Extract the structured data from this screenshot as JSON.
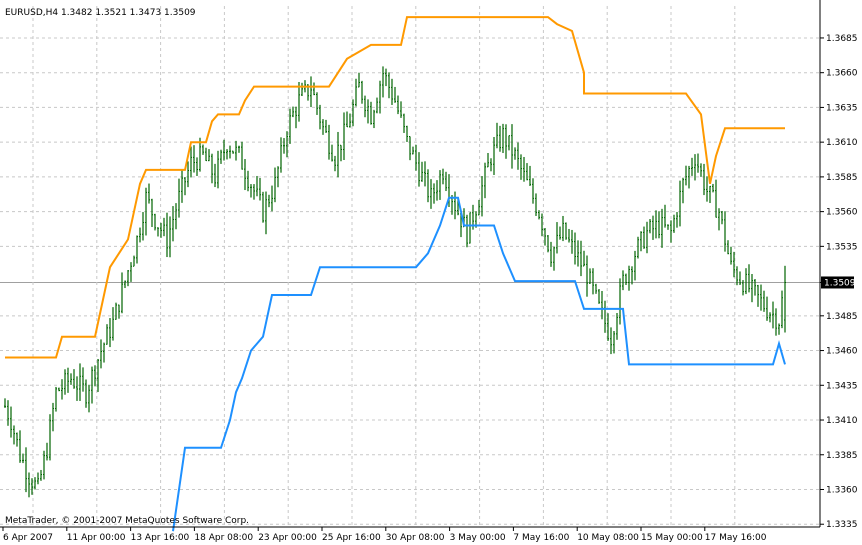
{
  "chart_data": {
    "type": "candlestick",
    "title": "EURUSD,H4  1.3482 1.3521 1.3473 1.3509",
    "symbol": "EURUSD",
    "timeframe": "H4",
    "last_bar": {
      "open": 1.3482,
      "high": 1.3521,
      "low": 1.3473,
      "close": 1.3509
    },
    "current_price_label": "1.3509",
    "watermark": "MetaTrader, © 2001-2007 MetaQuotes Software Corp.",
    "ylim": [
      1.3333,
      1.3708
    ],
    "grid": true,
    "y_ticks": [
      "1.3685",
      "1.3660",
      "1.3635",
      "1.3610",
      "1.3585",
      "1.3560",
      "1.3535",
      "1.3509",
      "1.3485",
      "1.3460",
      "1.3435",
      "1.3410",
      "1.3385",
      "1.3360",
      "1.3335"
    ],
    "x_ticks": [
      "6 Apr 2007",
      "11 Apr 00:00",
      "13 Apr 16:00",
      "18 Apr 08:00",
      "23 Apr 00:00",
      "25 Apr 16:00",
      "30 Apr 08:00",
      "3 May 00:00",
      "7 May 16:00",
      "10 May 08:00",
      "15 May 00:00",
      "17 May 16:00"
    ],
    "candle_color": "#006400",
    "anchors": [
      [
        0,
        1.342
      ],
      [
        2,
        1.341
      ],
      [
        5,
        1.3385
      ],
      [
        8,
        1.337
      ],
      [
        11,
        1.336
      ],
      [
        14,
        1.339
      ],
      [
        17,
        1.343
      ],
      [
        22,
        1.344
      ],
      [
        27,
        1.343
      ],
      [
        32,
        1.346
      ],
      [
        36,
        1.348
      ],
      [
        40,
        1.351
      ],
      [
        44,
        1.354
      ],
      [
        47,
        1.357
      ],
      [
        50,
        1.3555
      ],
      [
        54,
        1.354
      ],
      [
        58,
        1.357
      ],
      [
        62,
        1.3595
      ],
      [
        66,
        1.36
      ],
      [
        70,
        1.3585
      ],
      [
        74,
        1.361
      ],
      [
        78,
        1.36
      ],
      [
        82,
        1.358
      ],
      [
        86,
        1.356
      ],
      [
        90,
        1.358
      ],
      [
        94,
        1.362
      ],
      [
        98,
        1.364
      ],
      [
        102,
        1.365
      ],
      [
        106,
        1.362
      ],
      [
        110,
        1.36
      ],
      [
        114,
        1.362
      ],
      [
        118,
        1.365
      ],
      [
        122,
        1.363
      ],
      [
        126,
        1.366
      ],
      [
        130,
        1.364
      ],
      [
        134,
        1.361
      ],
      [
        138,
        1.359
      ],
      [
        142,
        1.357
      ],
      [
        146,
        1.359
      ],
      [
        150,
        1.3565
      ],
      [
        154,
        1.3545
      ],
      [
        158,
        1.357
      ],
      [
        162,
        1.36
      ],
      [
        166,
        1.3615
      ],
      [
        170,
        1.36
      ],
      [
        174,
        1.358
      ],
      [
        178,
        1.356
      ],
      [
        182,
        1.353
      ],
      [
        186,
        1.3545
      ],
      [
        190,
        1.353
      ],
      [
        194,
        1.3515
      ],
      [
        198,
        1.349
      ],
      [
        202,
        1.347
      ],
      [
        206,
        1.351
      ],
      [
        210,
        1.353
      ],
      [
        214,
        1.3545
      ],
      [
        218,
        1.355
      ],
      [
        222,
        1.3545
      ],
      [
        226,
        1.358
      ],
      [
        230,
        1.36
      ],
      [
        234,
        1.3575
      ],
      [
        238,
        1.356
      ],
      [
        242,
        1.352
      ],
      [
        246,
        1.351
      ],
      [
        250,
        1.35
      ],
      [
        254,
        1.349
      ],
      [
        258,
        1.3482
      ],
      [
        260,
        1.3509
      ]
    ],
    "series": [
      {
        "name": "",
        "color": "#ff9900",
        "points": [
          [
            0,
            1.3455
          ],
          [
            17,
            1.3455
          ],
          [
            19,
            1.347
          ],
          [
            30,
            1.347
          ],
          [
            33,
            1.35
          ],
          [
            35,
            1.352
          ],
          [
            38,
            1.353
          ],
          [
            41,
            1.354
          ],
          [
            43,
            1.356
          ],
          [
            45,
            1.358
          ],
          [
            47,
            1.359
          ],
          [
            60,
            1.359
          ],
          [
            62,
            1.361
          ],
          [
            67,
            1.361
          ],
          [
            69,
            1.3625
          ],
          [
            71,
            1.363
          ],
          [
            78,
            1.363
          ],
          [
            80,
            1.364
          ],
          [
            83,
            1.365
          ],
          [
            108,
            1.365
          ],
          [
            111,
            1.366
          ],
          [
            114,
            1.367
          ],
          [
            122,
            1.368
          ],
          [
            132,
            1.368
          ],
          [
            134,
            1.37
          ],
          [
            181,
            1.37
          ],
          [
            184,
            1.3695
          ],
          [
            189,
            1.369
          ],
          [
            193,
            1.366
          ],
          [
            193,
            1.3645
          ],
          [
            227,
            1.3645
          ],
          [
            232,
            1.363
          ],
          [
            235,
            1.358
          ],
          [
            237,
            1.36
          ],
          [
            240,
            1.362
          ],
          [
            260,
            1.362
          ]
        ]
      },
      {
        "name": "",
        "color": "#1e90ff",
        "points": [
          [
            56,
            1.333
          ],
          [
            60,
            1.339
          ],
          [
            72,
            1.339
          ],
          [
            75,
            1.341
          ],
          [
            77,
            1.343
          ],
          [
            79,
            1.344
          ],
          [
            82,
            1.346
          ],
          [
            86,
            1.347
          ],
          [
            89,
            1.35
          ],
          [
            102,
            1.35
          ],
          [
            105,
            1.352
          ],
          [
            137,
            1.352
          ],
          [
            141,
            1.353
          ],
          [
            145,
            1.355
          ],
          [
            148,
            1.357
          ],
          [
            151,
            1.357
          ],
          [
            153,
            1.355
          ],
          [
            163,
            1.355
          ],
          [
            166,
            1.353
          ],
          [
            170,
            1.351
          ],
          [
            190,
            1.351
          ],
          [
            193,
            1.349
          ],
          [
            206,
            1.349
          ],
          [
            208,
            1.345
          ],
          [
            256,
            1.345
          ],
          [
            258,
            1.3465
          ],
          [
            260,
            1.345
          ]
        ]
      }
    ]
  }
}
